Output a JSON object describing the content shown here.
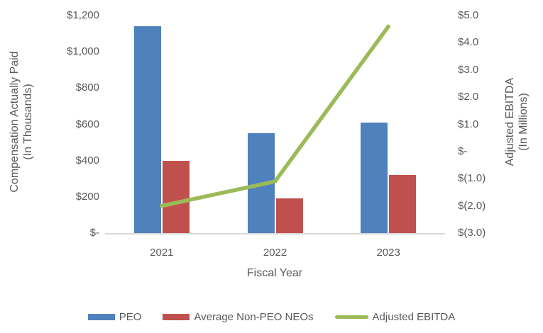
{
  "chart_data": {
    "type": "bar-line-combo",
    "categories": [
      "2021",
      "2022",
      "2023"
    ],
    "series": [
      {
        "name": "PEO",
        "type": "bar",
        "axis": "left",
        "color": "#4F81BD",
        "values": [
          1140,
          550,
          610
        ]
      },
      {
        "name": "Average Non-PEO NEOs",
        "type": "bar",
        "axis": "left",
        "color": "#C0504D",
        "values": [
          400,
          190,
          320
        ]
      },
      {
        "name": "Adjusted EBITDA",
        "type": "line",
        "axis": "right",
        "color": "#9BBB59",
        "values": [
          -2.0,
          -1.1,
          4.6
        ]
      }
    ],
    "left_axis": {
      "title_line1": "Compensation Actually Paid",
      "title_line2": "(In Thousands)",
      "range": [
        0,
        1200
      ],
      "ticks": [
        {
          "label": "$1,200",
          "value": 1200
        },
        {
          "label": "$1,000",
          "value": 1000
        },
        {
          "label": "$800",
          "value": 800
        },
        {
          "label": "$600",
          "value": 600
        },
        {
          "label": "$400",
          "value": 400
        },
        {
          "label": "$200",
          "value": 200
        },
        {
          "label": "$-",
          "value": 0
        }
      ]
    },
    "right_axis": {
      "title_line1": "Adjusted EBITDA",
      "title_line2": "(In Millions)",
      "range": [
        -3,
        5
      ],
      "ticks": [
        {
          "label": "$5.0",
          "value": 5
        },
        {
          "label": "$4.0",
          "value": 4
        },
        {
          "label": "$3.0",
          "value": 3
        },
        {
          "label": "$2.0",
          "value": 2
        },
        {
          "label": "$1.0",
          "value": 1
        },
        {
          "label": "$-",
          "value": 0
        },
        {
          "label": "$(1.0)",
          "value": -1
        },
        {
          "label": "$(2.0)",
          "value": -2
        },
        {
          "label": "$(3.0)",
          "value": -3
        }
      ]
    },
    "x_axis": {
      "title": "Fiscal Year"
    },
    "legend": {
      "position": "bottom"
    },
    "grid": false,
    "style": {
      "text_color": "#595959",
      "axis_line_color": "#D9D9D9",
      "background": "#FFFFFF"
    }
  }
}
